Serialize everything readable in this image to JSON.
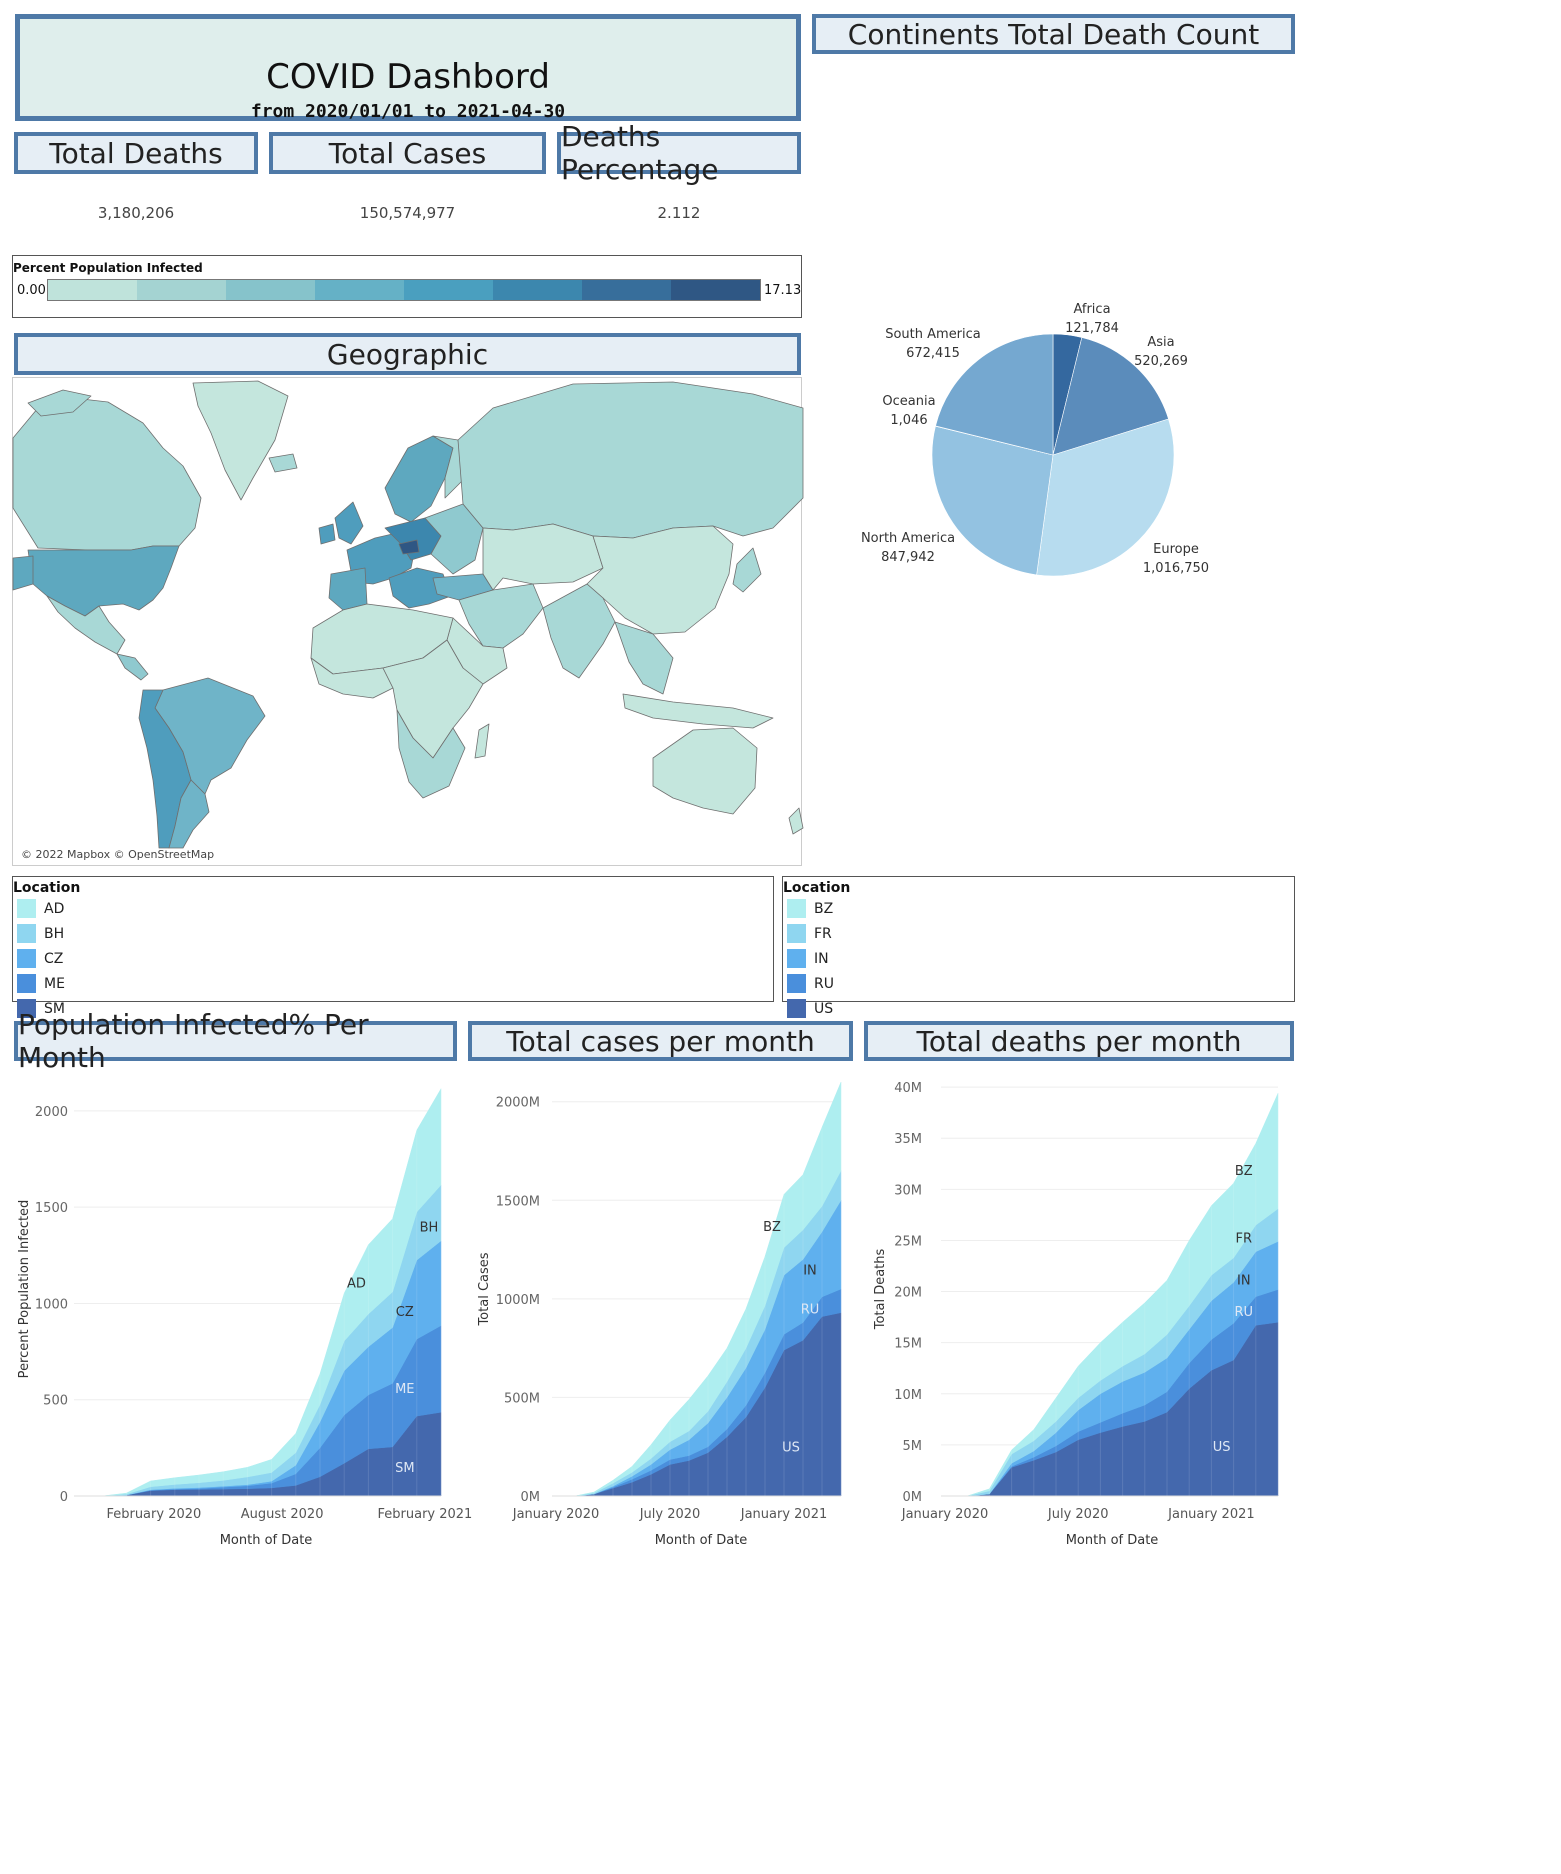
{
  "header": {
    "title": "COVID Dashbord",
    "subtitle": "from 2020/01/01 to 2021-04-30"
  },
  "kpis": [
    {
      "label": "Total Deaths",
      "value": "3,180,206"
    },
    {
      "label": "Total Cases",
      "value": "150,574,977"
    },
    {
      "label": "Deaths Percentage",
      "value": "2.112"
    }
  ],
  "color_legend": {
    "title": "Percent Population Infected",
    "min": "0.00",
    "max": "17.13",
    "colors": [
      "#bfe3db",
      "#a4d3d2",
      "#86c3cb",
      "#65b1c6",
      "#4a9fbf",
      "#3c87ae",
      "#376e9b",
      "#2f5784"
    ]
  },
  "geo": {
    "title": "Geographic",
    "attribution": "© 2022 Mapbox © OpenStreetMap"
  },
  "pie": {
    "title": "Continents Total Death Count",
    "chart_data": {
      "type": "pie",
      "slices": [
        {
          "label": "Africa",
          "value": 121784,
          "display": "121,784",
          "color": "#34689f"
        },
        {
          "label": "Asia",
          "value": 520269,
          "display": "520,269",
          "color": "#5b8cbb"
        },
        {
          "label": "Europe",
          "value": 1016750,
          "display": "1,016,750",
          "color": "#b7dcef"
        },
        {
          "label": "North America",
          "value": 847942,
          "display": "847,942",
          "color": "#93c2e1"
        },
        {
          "label": "Oceania",
          "value": 1046,
          "display": "1,046",
          "color": "#8ab8da"
        },
        {
          "label": "South America",
          "value": 672415,
          "display": "672,415",
          "color": "#75a8d0"
        }
      ]
    }
  },
  "location_legends": [
    {
      "title": "Location",
      "items": [
        {
          "label": "AD",
          "color": "#aeeef0"
        },
        {
          "label": "BH",
          "color": "#8fd6f0"
        },
        {
          "label": "CZ",
          "color": "#5fb0ee"
        },
        {
          "label": "ME",
          "color": "#4a8fdc"
        },
        {
          "label": "SM",
          "color": "#4468ad"
        }
      ]
    },
    {
      "title": "Location",
      "items": [
        {
          "label": "BZ",
          "color": "#aeeef0"
        },
        {
          "label": "FR",
          "color": "#8fd6f0"
        },
        {
          "label": "IN",
          "color": "#5fb0ee"
        },
        {
          "label": "RU",
          "color": "#4a8fdc"
        },
        {
          "label": "US",
          "color": "#4468ad"
        }
      ]
    }
  ],
  "area_charts": [
    {
      "title": "Population Infected% Per Month",
      "chart_data": {
        "type": "area",
        "stacked": true,
        "x": [
          "2020-01",
          "2020-02",
          "2020-03",
          "2020-04",
          "2020-05",
          "2020-06",
          "2020-07",
          "2020-08",
          "2020-09",
          "2020-10",
          "2020-11",
          "2020-12",
          "2021-01",
          "2021-02",
          "2021-03",
          "2021-04"
        ],
        "x_ticks": [
          "February 2020",
          "August 2020",
          "February 2021"
        ],
        "y_ticks": [
          "0",
          "500",
          "1000",
          "1500",
          "2000"
        ],
        "ylim": [
          0,
          2150
        ],
        "xlabel": "Month of Date",
        "ylabel": "Percent Population Infected",
        "series": [
          {
            "name": "SM",
            "values": [
              0,
              0,
              5,
              28,
              33,
              34,
              36,
              38,
              42,
              55,
              100,
              170,
              245,
              255,
              415,
              435
            ]
          },
          {
            "name": "ME",
            "values": [
              0,
              0,
              0,
              2,
              3,
              5,
              10,
              15,
              25,
              60,
              150,
              250,
              280,
              330,
              400,
              450
            ]
          },
          {
            "name": "CZ",
            "values": [
              0,
              0,
              0,
              3,
              4,
              5,
              5,
              6,
              10,
              45,
              135,
              230,
              250,
              290,
              410,
              440
            ]
          },
          {
            "name": "BH",
            "values": [
              0,
              0,
              5,
              15,
              20,
              25,
              30,
              40,
              45,
              65,
              90,
              155,
              170,
              185,
              250,
              290
            ]
          },
          {
            "name": "AD",
            "values": [
              0,
              0,
              5,
              30,
              35,
              40,
              45,
              50,
              68,
              100,
              160,
              248,
              360,
              380,
              425,
              500
            ]
          }
        ],
        "series_labels": [
          {
            "name": "SM",
            "x": "2021-03",
            "y": 150
          },
          {
            "name": "ME",
            "x": "2021-03",
            "y": 560
          },
          {
            "name": "CZ",
            "x": "2021-03",
            "y": 960
          },
          {
            "name": "BH",
            "x": "2021-04",
            "y": 1400
          },
          {
            "name": "AD",
            "x": "2021-01",
            "y": 1110
          }
        ]
      }
    },
    {
      "title": "Total cases per month",
      "chart_data": {
        "type": "area",
        "stacked": true,
        "x": [
          "2020-01",
          "2020-02",
          "2020-03",
          "2020-04",
          "2020-05",
          "2020-06",
          "2020-07",
          "2020-08",
          "2020-09",
          "2020-10",
          "2020-11",
          "2020-12",
          "2021-01",
          "2021-02",
          "2021-03",
          "2021-04"
        ],
        "x_ticks": [
          "January 2020",
          "July 2020",
          "January 2021"
        ],
        "y_ticks": [
          "0M",
          "500M",
          "1000M",
          "1500M",
          "2000M"
        ],
        "ylim": [
          0,
          2100
        ],
        "xlabel": "Month of Date",
        "ylabel": "Total Cases",
        "series": [
          {
            "name": "US",
            "values": [
              0,
              0,
              10,
              40,
              70,
              110,
              160,
              180,
              220,
              300,
              400,
              550,
              740,
              790,
              910,
              930
            ]
          },
          {
            "name": "RU",
            "values": [
              0,
              0,
              0,
              5,
              15,
              20,
              25,
              25,
              30,
              40,
              60,
              75,
              80,
              90,
              100,
              120
            ]
          },
          {
            "name": "IN",
            "values": [
              0,
              0,
              0,
              5,
              15,
              30,
              50,
              80,
              120,
              160,
              190,
              220,
              300,
              320,
              330,
              450
            ]
          },
          {
            "name": "FR",
            "values": [
              0,
              0,
              5,
              15,
              20,
              30,
              40,
              45,
              60,
              80,
              100,
              120,
              140,
              150,
              130,
              150
            ]
          },
          {
            "name": "BZ",
            "values": [
              0,
              0,
              5,
              15,
              30,
              70,
              110,
              160,
              180,
              170,
              200,
              250,
              270,
              280,
              400,
              450
            ]
          }
        ],
        "series_labels": [
          {
            "name": "US",
            "x": "2021-02",
            "y": 250
          },
          {
            "name": "RU",
            "x": "2021-03",
            "y": 950
          },
          {
            "name": "IN",
            "x": "2021-03",
            "y": 1150
          },
          {
            "name": "BZ",
            "x": "2021-01",
            "y": 1370
          }
        ]
      }
    },
    {
      "title": "Total deaths per month",
      "chart_data": {
        "type": "area",
        "stacked": true,
        "x": [
          "2020-01",
          "2020-02",
          "2020-03",
          "2020-04",
          "2020-05",
          "2020-06",
          "2020-07",
          "2020-08",
          "2020-09",
          "2020-10",
          "2020-11",
          "2020-12",
          "2021-01",
          "2021-02",
          "2021-03",
          "2021-04"
        ],
        "x_ticks": [
          "January 2020",
          "July 2020",
          "January 2021"
        ],
        "y_ticks": [
          "0M",
          "5M",
          "10M",
          "15M",
          "20M",
          "25M",
          "30M",
          "35M",
          "40M"
        ],
        "ylim": [
          0,
          40.5
        ],
        "xlabel": "Month of Date",
        "ylabel": "Total Deaths",
        "series": [
          {
            "name": "US",
            "values": [
              0,
              0,
              0.2,
              2.8,
              3.5,
              4.3,
              5.5,
              6.2,
              6.8,
              7.3,
              8.2,
              10.5,
              12.3,
              13.3,
              16.7,
              17.0
            ]
          },
          {
            "name": "RU",
            "values": [
              0,
              0,
              0,
              0.1,
              0.3,
              0.6,
              0.8,
              1.0,
              1.3,
              1.6,
              2.0,
              2.5,
              3.0,
              3.6,
              2.8,
              3.2
            ]
          },
          {
            "name": "IN",
            "values": [
              0,
              0,
              0,
              0.3,
              0.6,
              1.3,
              2.1,
              2.8,
              3.1,
              3.2,
              3.3,
              3.3,
              3.8,
              4.0,
              4.4,
              4.7
            ]
          },
          {
            "name": "FR",
            "values": [
              0,
              0,
              0.3,
              0.9,
              1.0,
              1.1,
              1.2,
              1.3,
              1.5,
              1.8,
              2.3,
              2.3,
              2.5,
              2.4,
              2.6,
              3.2
            ]
          },
          {
            "name": "BZ",
            "values": [
              0,
              0,
              0.2,
              0.4,
              1.1,
              2.3,
              3.1,
              3.7,
              4.3,
              5.0,
              5.3,
              6.4,
              6.8,
              7.3,
              8.0,
              11.3
            ]
          }
        ],
        "series_labels": [
          {
            "name": "US",
            "x": "2021-02",
            "y": 4.9
          },
          {
            "name": "RU",
            "x": "2021-03",
            "y": 18.1
          },
          {
            "name": "IN",
            "x": "2021-03",
            "y": 21.2
          },
          {
            "name": "FR",
            "x": "2021-03",
            "y": 25.3
          },
          {
            "name": "BZ",
            "x": "2021-03",
            "y": 31.9
          }
        ]
      }
    }
  ]
}
